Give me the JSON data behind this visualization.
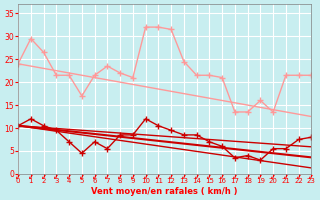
{
  "x": [
    0,
    1,
    2,
    3,
    4,
    5,
    6,
    7,
    8,
    9,
    10,
    11,
    12,
    13,
    14,
    15,
    16,
    17,
    18,
    19,
    20,
    21,
    22,
    23
  ],
  "line1_rafales": [
    24,
    29.5,
    26.5,
    21.5,
    21.5,
    17,
    21.5,
    23.5,
    22,
    21,
    32,
    32,
    31.5,
    24.5,
    21.5,
    21.5,
    21,
    13.5,
    13.5,
    16,
    13.5,
    21.5,
    21.5,
    21.5
  ],
  "line1_trend": [
    24,
    23.5,
    23.0,
    22.5,
    22.0,
    21.5,
    21.0,
    20.5,
    20.0,
    19.5,
    19.0,
    18.5,
    18.0,
    17.5,
    17.0,
    16.5,
    16.0,
    15.5,
    15.0,
    14.5,
    14.0,
    13.5,
    13.0,
    12.5
  ],
  "line2_moyen": [
    10.5,
    12,
    10.5,
    9.5,
    7,
    4.5,
    7,
    5.5,
    8.5,
    8.5,
    12,
    10.5,
    9.5,
    8.5,
    8.5,
    7,
    6,
    3.5,
    4,
    3,
    5.5,
    5.5,
    7.5,
    8
  ],
  "line2_trend": [
    10.5,
    10.2,
    9.9,
    9.6,
    9.3,
    9.0,
    8.7,
    8.4,
    8.1,
    7.8,
    7.5,
    7.2,
    6.9,
    6.6,
    6.3,
    6.0,
    5.7,
    5.4,
    5.1,
    4.8,
    4.5,
    4.2,
    3.9,
    3.6
  ],
  "line3_trend2": [
    10.5,
    10.1,
    9.7,
    9.3,
    8.9,
    8.5,
    8.1,
    7.7,
    7.3,
    6.9,
    6.5,
    6.1,
    5.7,
    5.3,
    4.9,
    4.5,
    4.1,
    3.7,
    3.3,
    2.9,
    2.5,
    2.1,
    1.7,
    1.3
  ],
  "line4_trend3": [
    10.5,
    10.3,
    10.1,
    9.9,
    9.7,
    9.5,
    9.3,
    9.1,
    8.9,
    8.7,
    8.5,
    8.3,
    8.1,
    7.9,
    7.7,
    7.5,
    7.3,
    7.1,
    6.9,
    6.7,
    6.5,
    6.3,
    6.1,
    5.9
  ],
  "bg_color": "#c8eef0",
  "grid_color": "#ffffff",
  "line_color_light": "#ff9999",
  "line_color_dark": "#cc0000",
  "xlabel": "Vent moyen/en rafales ( km/h )",
  "ylim": [
    0,
    37
  ],
  "xlim": [
    0,
    23
  ],
  "yticks": [
    0,
    5,
    10,
    15,
    20,
    25,
    30,
    35
  ],
  "xticks": [
    0,
    1,
    2,
    3,
    4,
    5,
    6,
    7,
    8,
    9,
    10,
    11,
    12,
    13,
    14,
    15,
    16,
    17,
    18,
    19,
    20,
    21,
    22,
    23
  ]
}
